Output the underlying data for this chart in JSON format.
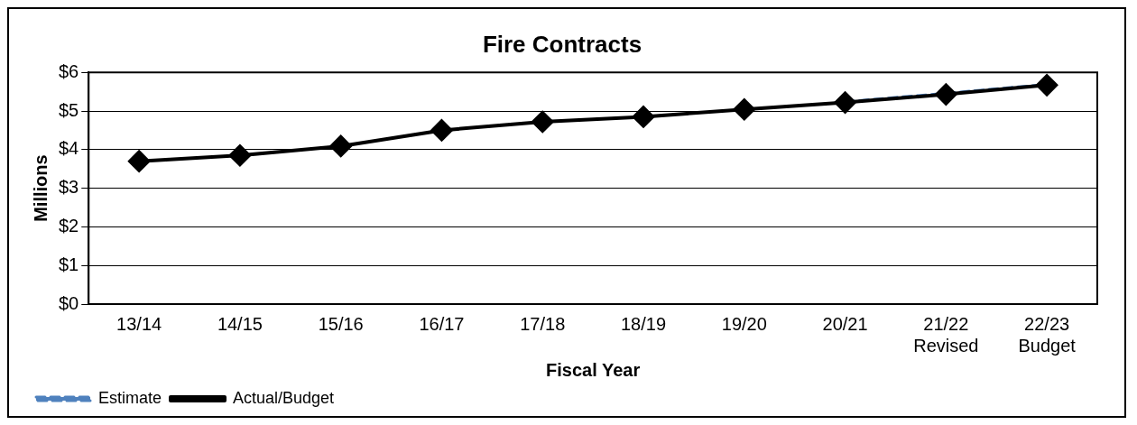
{
  "chart_data": {
    "type": "line",
    "title": "Fire Contracts",
    "xlabel": "Fiscal Year",
    "ylabel": "Millions",
    "categories": [
      "13/14",
      "14/15",
      "15/16",
      "16/17",
      "17/18",
      "18/19",
      "19/20",
      "20/21",
      "21/22\nRevised",
      "22/23\nBudget"
    ],
    "series": [
      {
        "name": "Estimate",
        "color": "#4f81bd",
        "line_style": "dashed",
        "values": [
          null,
          null,
          null,
          null,
          null,
          null,
          null,
          5.24,
          5.46,
          5.69
        ]
      },
      {
        "name": "Actual/Budget",
        "color": "#000000",
        "line_style": "solid",
        "values": [
          3.7,
          3.85,
          4.09,
          4.5,
          4.72,
          4.85,
          5.04,
          5.22,
          5.43,
          5.67
        ]
      }
    ],
    "ylim": [
      0,
      6
    ],
    "yticks": [
      {
        "value": 0,
        "label": "$0"
      },
      {
        "value": 1,
        "label": "$1"
      },
      {
        "value": 2,
        "label": "$2"
      },
      {
        "value": 3,
        "label": "$3"
      },
      {
        "value": 4,
        "label": "$4"
      },
      {
        "value": 5,
        "label": "$5"
      },
      {
        "value": 6,
        "label": "$6"
      }
    ],
    "grid": "y",
    "legend": "bottom left",
    "marker": "diamond"
  }
}
